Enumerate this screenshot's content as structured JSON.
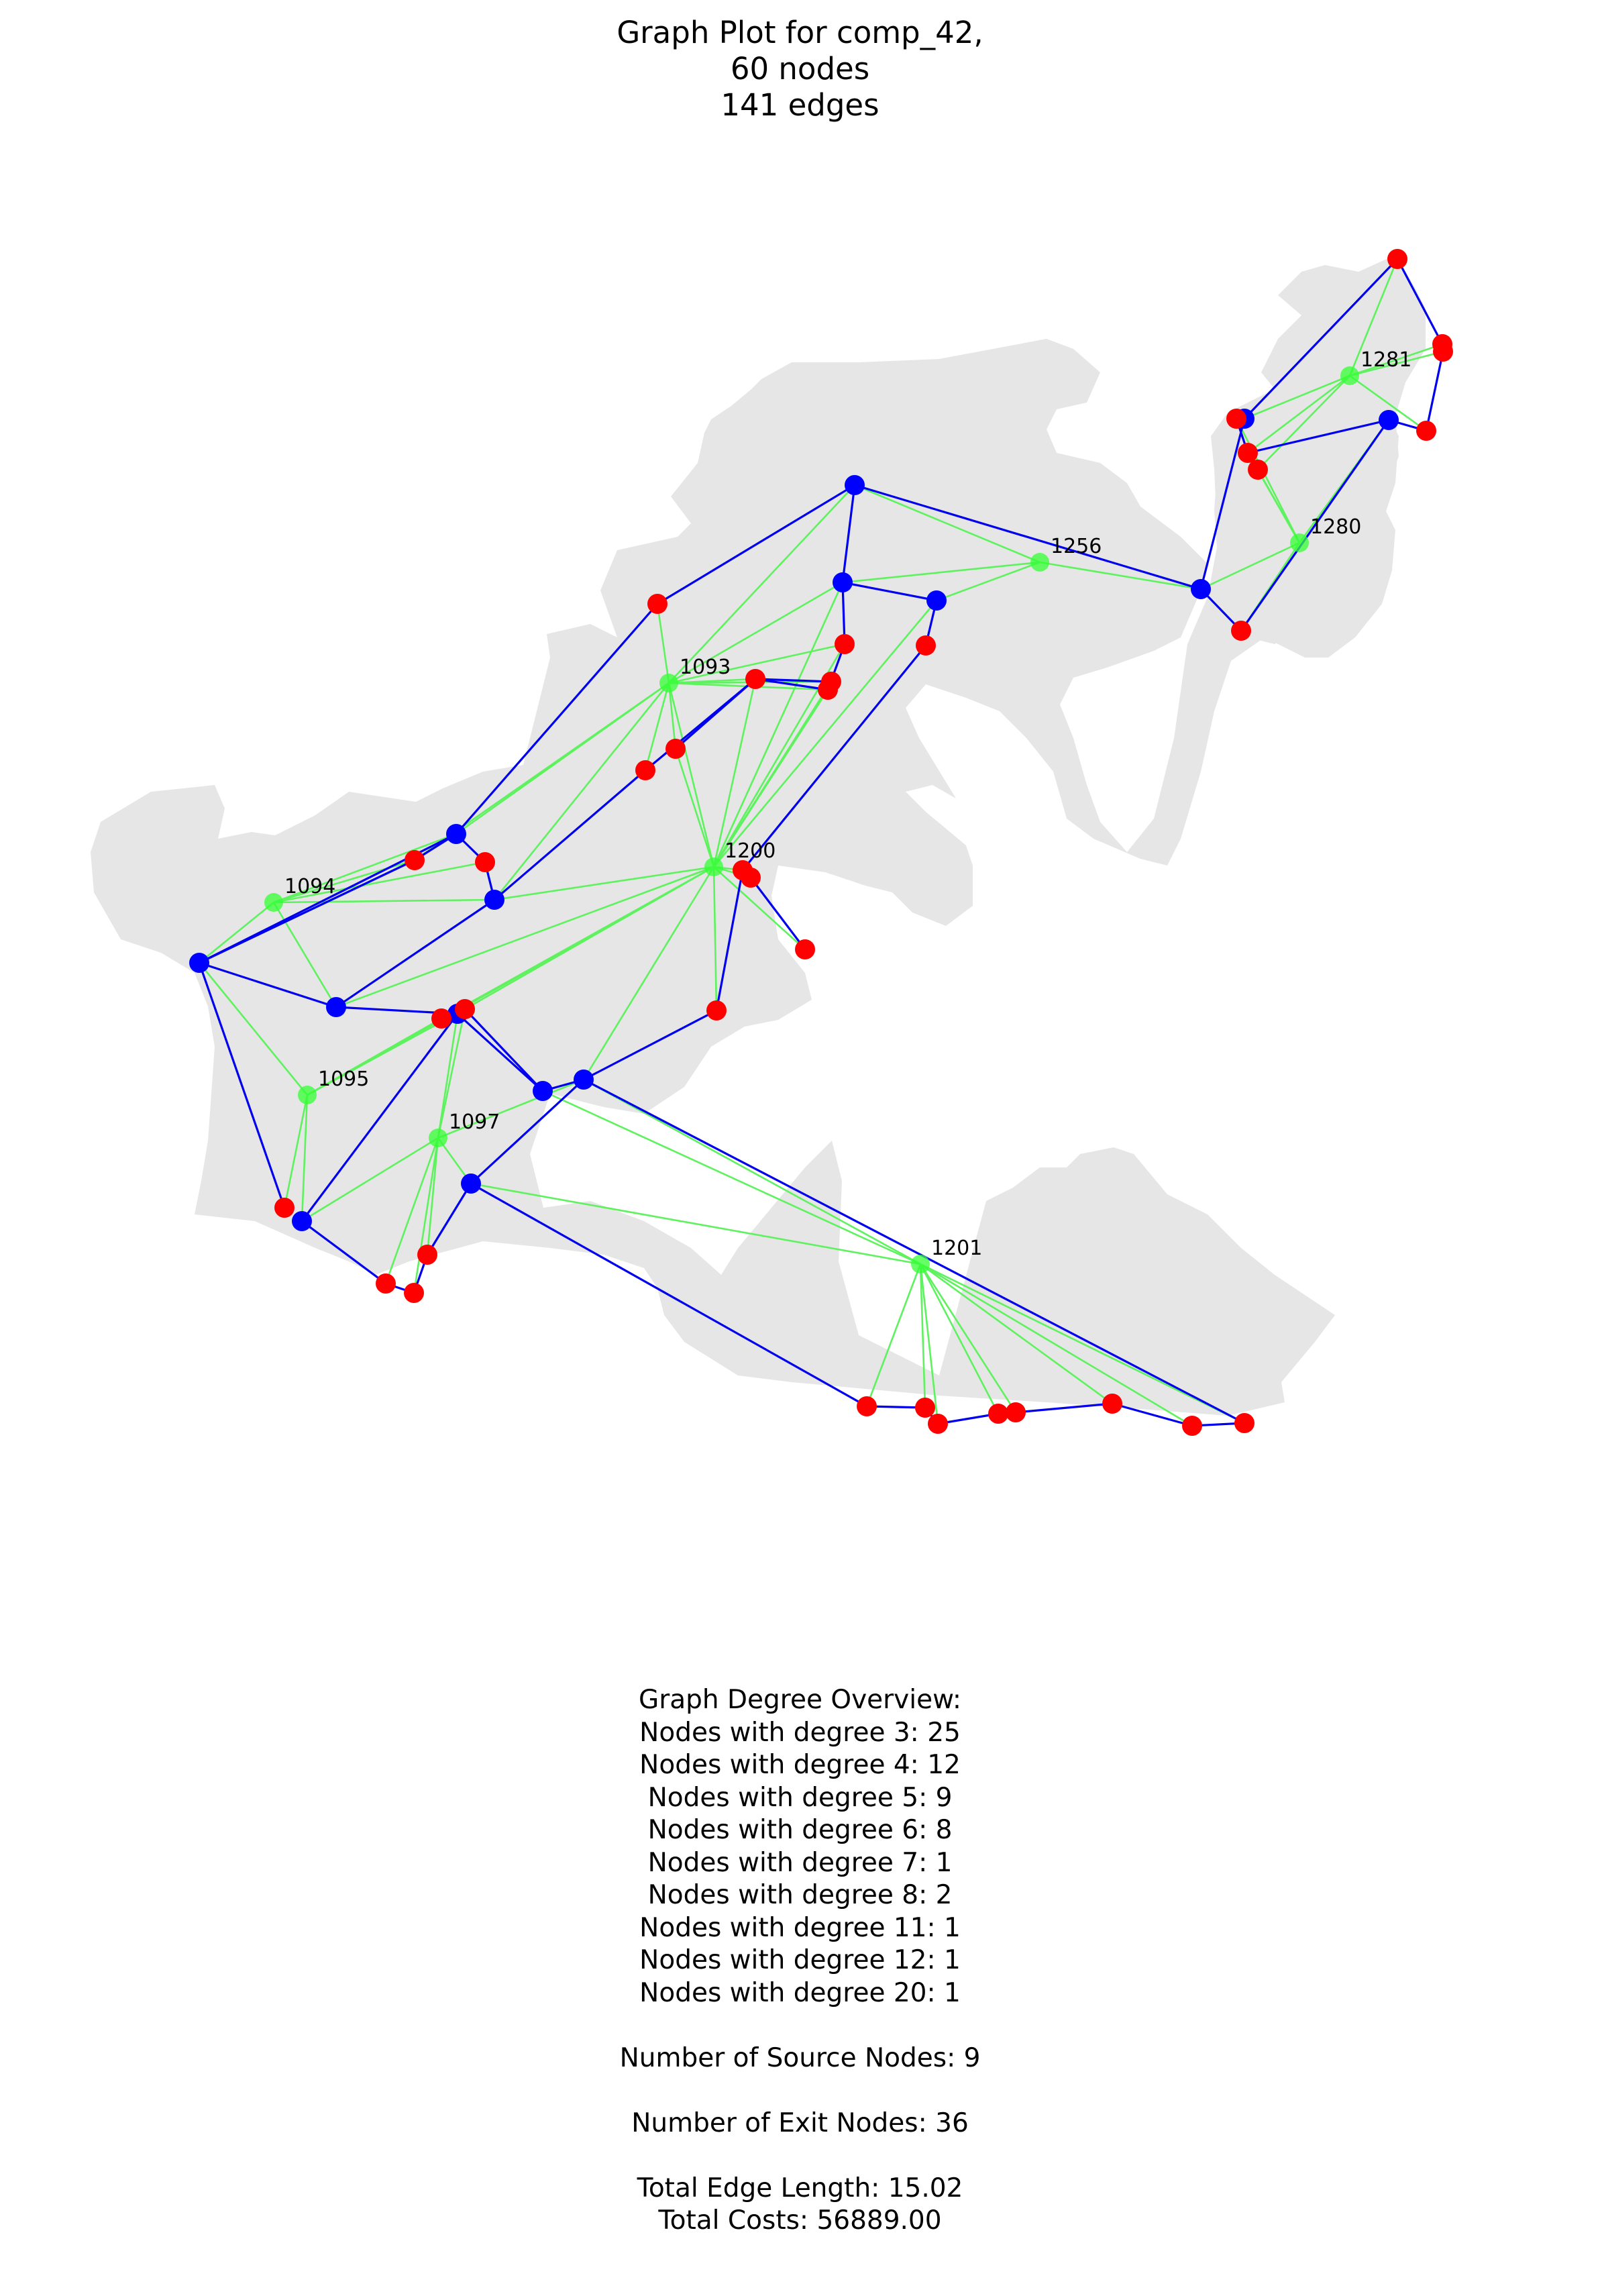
{
  "title": [
    "Graph Plot for comp_42,",
    "60 nodes",
    "141 edges"
  ],
  "colors": {
    "land": "#e6e6e6",
    "source_node": "#33ff33",
    "exit_node": "#ff0000",
    "junction_node": "#0000ff",
    "green_edge": "#5ef25e",
    "blue_edge": "#0000ee"
  },
  "node_labels": [
    "1256",
    "1281",
    "1280",
    "1093",
    "1200",
    "1094",
    "1095",
    "1097",
    "1201"
  ],
  "stats": {
    "degree_heading": "Graph Degree Overview:",
    "degree_lines": [
      "Nodes with degree 3: 25",
      "Nodes with degree 4: 12",
      "Nodes with degree 5: 9",
      "Nodes with degree 6: 8",
      "Nodes with degree 7: 1",
      "Nodes with degree 8: 2",
      "Nodes with degree 11: 1",
      "Nodes with degree 12: 1",
      "Nodes with degree 20: 1"
    ],
    "source_nodes": "Number of Source Nodes: 9",
    "exit_nodes": "Number of Exit Nodes: 36",
    "total_edge_length": "Total Edge Length: 15.02",
    "total_costs": "Total Costs: 56889.00"
  }
}
